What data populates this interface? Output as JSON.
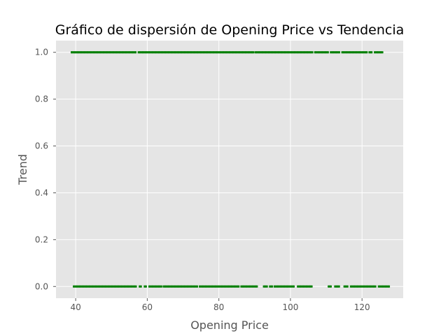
{
  "chart_data": {
    "type": "scatter",
    "title": "Gráfico de dispersión de Opening Price vs Tendencia",
    "xlabel": "Opening Price",
    "ylabel": "Trend",
    "xlim": [
      34.5,
      131.5
    ],
    "ylim": [
      -0.05,
      1.05
    ],
    "xticks": [
      40,
      60,
      80,
      100,
      120
    ],
    "yticks": [
      0.0,
      0.2,
      0.4,
      0.6,
      0.8,
      1.0
    ],
    "grid": true,
    "marker_color": "#008000",
    "series": [
      {
        "y_value": 1.0,
        "x_ranges": [
          [
            38.8,
            56.8
          ],
          [
            57.5,
            89.8
          ],
          [
            90.2,
            106.3
          ],
          [
            106.8,
            110.6
          ],
          [
            111.2,
            113.8
          ],
          [
            114.4,
            121.5
          ],
          [
            122.0,
            122.8
          ],
          [
            123.5,
            125.9
          ]
        ]
      },
      {
        "y_value": 0.0,
        "x_ranges": [
          [
            39.4,
            57.0
          ],
          [
            57.8,
            58.5
          ],
          [
            59.2,
            59.9
          ],
          [
            60.5,
            64.0
          ],
          [
            64.5,
            74.0
          ],
          [
            74.6,
            85.8
          ],
          [
            86.2,
            90.8
          ],
          [
            92.5,
            93.5
          ],
          [
            94.2,
            95.0
          ],
          [
            95.5,
            101.2
          ],
          [
            102.0,
            106.0
          ],
          [
            110.6,
            111.4
          ],
          [
            112.4,
            113.8
          ],
          [
            115.0,
            116.2
          ],
          [
            116.8,
            124.0
          ],
          [
            124.6,
            127.8
          ]
        ]
      }
    ],
    "x_tick_labels": [
      "40",
      "60",
      "80",
      "100",
      "120"
    ],
    "y_tick_labels": [
      "0.0",
      "0.2",
      "0.4",
      "0.6",
      "0.8",
      "1.0"
    ]
  }
}
